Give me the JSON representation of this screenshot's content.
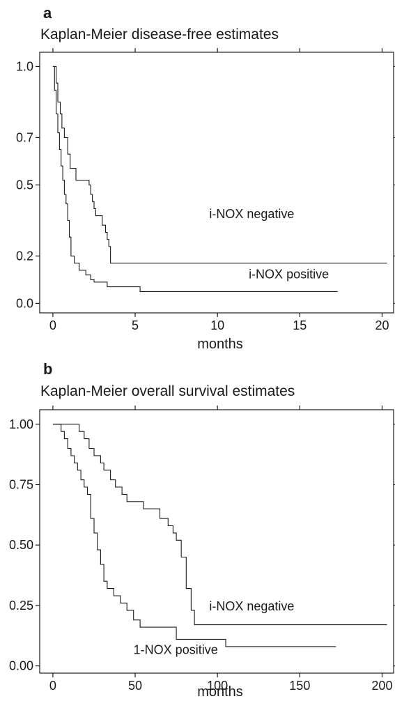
{
  "chart_data": [
    {
      "panel": "a",
      "type": "line",
      "step": true,
      "title": "Kaplan-Meier disease-free estimates",
      "xlabel": "months",
      "ylabel": "",
      "xlim": [
        -0.8,
        20.7
      ],
      "ylim": [
        -0.04,
        1.06
      ],
      "xticks": [
        0,
        5,
        10,
        15,
        20
      ],
      "yticks": [
        {
          "value": 0.0,
          "label": "0.0"
        },
        {
          "value": 0.2,
          "label": "0.2"
        },
        {
          "value": 0.5,
          "label": "0.5"
        },
        {
          "value": 0.7,
          "label": "0.7"
        },
        {
          "value": 1.0,
          "label": "1.0"
        }
      ],
      "series": [
        {
          "name": "i-NOX negative",
          "x": [
            0,
            0.2,
            0.3,
            0.45,
            0.55,
            0.7,
            0.9,
            1.05,
            1.4,
            2.2,
            2.3,
            2.4,
            2.5,
            2.6,
            3.0,
            3.2,
            3.3,
            3.4,
            3.5,
            20.3
          ],
          "y": [
            1.0,
            0.93,
            0.85,
            0.8,
            0.74,
            0.7,
            0.63,
            0.57,
            0.52,
            0.5,
            0.46,
            0.43,
            0.4,
            0.37,
            0.33,
            0.3,
            0.27,
            0.24,
            0.17,
            0.17
          ]
        },
        {
          "name": "i-NOX positive",
          "x": [
            0,
            0.1,
            0.2,
            0.3,
            0.4,
            0.5,
            0.6,
            0.7,
            0.8,
            0.9,
            1.0,
            1.1,
            1.3,
            1.6,
            2.0,
            2.3,
            2.5,
            3.3,
            5.3,
            17.3
          ],
          "y": [
            1.0,
            0.9,
            0.8,
            0.72,
            0.65,
            0.58,
            0.52,
            0.46,
            0.42,
            0.35,
            0.28,
            0.2,
            0.17,
            0.14,
            0.12,
            0.1,
            0.09,
            0.07,
            0.05,
            0.05
          ]
        }
      ],
      "annotations": [
        {
          "text": "i-NOX negative",
          "series": "i-NOX negative",
          "x": 9.5,
          "y": 0.36
        },
        {
          "text": "i-NOX positive",
          "series": "i-NOX positive",
          "x": 11.9,
          "y": 0.105
        }
      ]
    },
    {
      "panel": "b",
      "type": "line",
      "step": true,
      "title": "Kaplan-Meier overall survival estimates",
      "xlabel": "months",
      "ylabel": "",
      "xlim": [
        -8,
        207
      ],
      "ylim": [
        -0.03,
        1.06
      ],
      "xticks": [
        0,
        50,
        100,
        150,
        200
      ],
      "yticks": [
        {
          "value": 0.0,
          "label": "0.00"
        },
        {
          "value": 0.25,
          "label": "0.25"
        },
        {
          "value": 0.5,
          "label": "0.50"
        },
        {
          "value": 0.75,
          "label": "0.75"
        },
        {
          "value": 1.0,
          "label": "1.00"
        }
      ],
      "series": [
        {
          "name": "i-NOX negative",
          "x": [
            0,
            16,
            19,
            22,
            25,
            29,
            31,
            35,
            38,
            42,
            45,
            50,
            55,
            65,
            70,
            73,
            75,
            78,
            81,
            84,
            86,
            203
          ],
          "y": [
            1.0,
            0.97,
            0.94,
            0.9,
            0.87,
            0.84,
            0.81,
            0.77,
            0.74,
            0.71,
            0.68,
            0.68,
            0.65,
            0.61,
            0.58,
            0.55,
            0.52,
            0.45,
            0.32,
            0.23,
            0.17,
            0.17
          ]
        },
        {
          "name": "1-NOX positive",
          "x": [
            0,
            5,
            7,
            9,
            11,
            13,
            15,
            17,
            19,
            21,
            23,
            25,
            27,
            29,
            31,
            33,
            37,
            41,
            45,
            49,
            53,
            75,
            105,
            172
          ],
          "y": [
            1.0,
            0.97,
            0.94,
            0.9,
            0.87,
            0.84,
            0.81,
            0.77,
            0.74,
            0.71,
            0.61,
            0.55,
            0.48,
            0.42,
            0.35,
            0.32,
            0.29,
            0.26,
            0.23,
            0.19,
            0.16,
            0.11,
            0.08,
            0.08
          ]
        }
      ],
      "annotations": [
        {
          "text": "i-NOX negative",
          "series": "i-NOX negative",
          "x": 95,
          "y": 0.23
        },
        {
          "text": "1-NOX positive",
          "series": "1-NOX positive",
          "x": 49,
          "y": 0.05
        }
      ]
    }
  ]
}
